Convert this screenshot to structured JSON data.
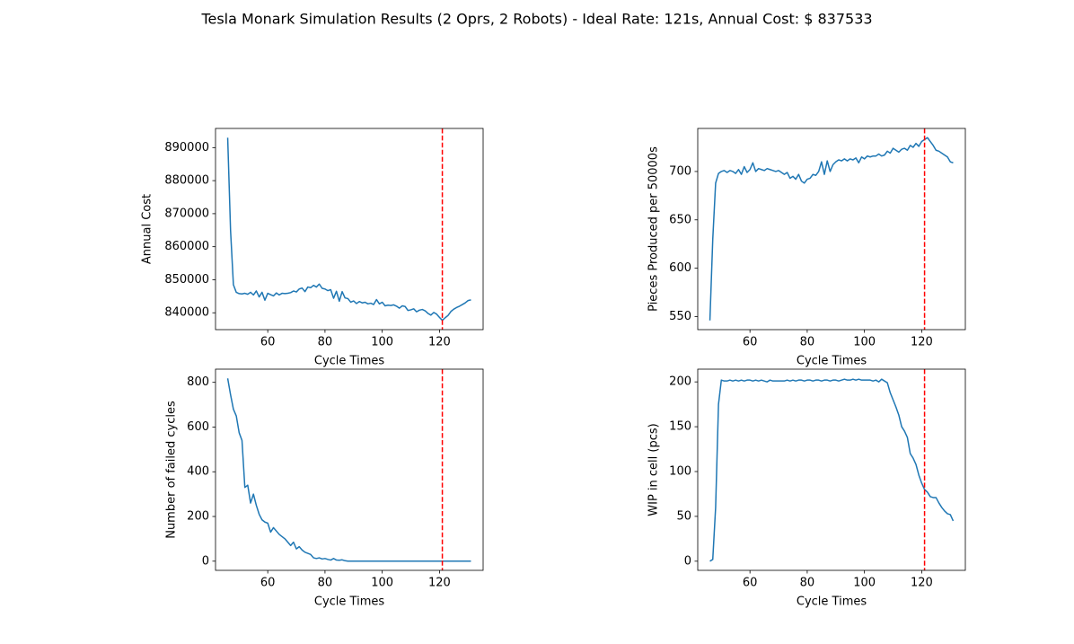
{
  "title": "Tesla Monark Simulation Results (2 Oprs, 2 Robots) - Ideal Rate:  121s, Annual Cost: $ 837533",
  "chart_data": [
    {
      "type": "line",
      "xlabel": "Cycle Times",
      "ylabel": "Annual Cost",
      "color": "#1f77b4",
      "vline": 121,
      "vline_color": "#ff0000",
      "xlim": [
        41.75,
        135.25
      ],
      "xticks": [
        60,
        80,
        100,
        120
      ],
      "ylim": [
        834900,
        895800
      ],
      "yticks": [
        840000,
        850000,
        860000,
        870000,
        880000,
        890000
      ],
      "x": [
        46,
        47,
        48,
        49,
        50,
        51,
        52,
        53,
        54,
        55,
        56,
        57,
        58,
        59,
        60,
        61,
        62,
        63,
        64,
        65,
        66,
        67,
        68,
        69,
        70,
        71,
        72,
        73,
        74,
        75,
        76,
        77,
        78,
        79,
        80,
        81,
        82,
        83,
        84,
        85,
        86,
        87,
        88,
        89,
        90,
        91,
        92,
        93,
        94,
        95,
        96,
        97,
        98,
        99,
        100,
        101,
        102,
        103,
        104,
        105,
        106,
        107,
        108,
        109,
        110,
        111,
        112,
        113,
        114,
        115,
        116,
        117,
        118,
        119,
        120,
        121,
        122,
        123,
        124,
        125,
        126,
        127,
        128,
        129,
        130,
        131
      ],
      "values": [
        893000,
        865000,
        848500,
        846200,
        845800,
        845700,
        845900,
        845600,
        846200,
        845400,
        846600,
        844800,
        846200,
        843800,
        845900,
        845500,
        845100,
        846000,
        845400,
        845900,
        845800,
        845900,
        846100,
        846600,
        846300,
        847200,
        847500,
        846400,
        847800,
        847600,
        848300,
        847800,
        848700,
        847400,
        847200,
        846700,
        847000,
        844400,
        846500,
        843500,
        846400,
        844500,
        844300,
        843200,
        843600,
        842800,
        843400,
        843000,
        843200,
        842700,
        842900,
        842500,
        844000,
        842700,
        843200,
        842100,
        842300,
        842200,
        842400,
        842000,
        841400,
        842100,
        841900,
        840700,
        840900,
        841200,
        840300,
        840800,
        841000,
        840600,
        839800,
        839300,
        840100,
        839600,
        838600,
        837700,
        838500,
        839200,
        840400,
        841100,
        841600,
        842000,
        842500,
        843000,
        843700,
        843900
      ]
    },
    {
      "type": "line",
      "xlabel": "Cycle Times",
      "ylabel": "Pieces Produced per 50000s",
      "color": "#1f77b4",
      "vline": 121,
      "vline_color": "#ff0000",
      "xlim": [
        41.75,
        135.25
      ],
      "xticks": [
        60,
        80,
        100,
        120
      ],
      "ylim": [
        536.5,
        744.5
      ],
      "yticks": [
        550,
        600,
        650,
        700
      ],
      "x": [
        46,
        47,
        48,
        49,
        50,
        51,
        52,
        53,
        54,
        55,
        56,
        57,
        58,
        59,
        60,
        61,
        62,
        63,
        64,
        65,
        66,
        67,
        68,
        69,
        70,
        71,
        72,
        73,
        74,
        75,
        76,
        77,
        78,
        79,
        80,
        81,
        82,
        83,
        84,
        85,
        86,
        87,
        88,
        89,
        90,
        91,
        92,
        93,
        94,
        95,
        96,
        97,
        98,
        99,
        100,
        101,
        102,
        103,
        104,
        105,
        106,
        107,
        108,
        109,
        110,
        111,
        112,
        113,
        114,
        115,
        116,
        117,
        118,
        119,
        120,
        121,
        122,
        123,
        124,
        125,
        126,
        127,
        128,
        129,
        130,
        131
      ],
      "values": [
        546,
        630,
        688,
        698,
        700,
        701,
        699,
        701,
        700,
        698,
        702,
        697,
        705,
        699,
        702,
        709,
        700,
        703,
        702,
        701,
        703,
        702,
        701,
        700,
        701,
        699,
        697,
        699,
        693,
        695,
        692,
        697,
        690,
        688,
        692,
        693,
        697,
        696,
        700,
        710,
        697,
        711,
        700,
        707,
        710,
        712,
        711,
        713,
        711,
        713,
        712,
        714,
        709,
        715,
        713,
        716,
        715,
        716,
        716,
        718,
        716,
        717,
        721,
        719,
        724,
        722,
        720,
        723,
        724,
        722,
        727,
        725,
        729,
        726,
        731,
        733,
        735,
        731,
        727,
        722,
        721,
        719,
        717,
        715,
        710,
        709
      ]
    },
    {
      "type": "line",
      "xlabel": "Cycle Times",
      "ylabel": "Number of failed cycles",
      "color": "#1f77b4",
      "vline": 121,
      "vline_color": "#ff0000",
      "xlim": [
        41.75,
        135.25
      ],
      "xticks": [
        60,
        80,
        100,
        120
      ],
      "ylim": [
        -41,
        859
      ],
      "yticks": [
        0,
        200,
        400,
        600,
        800
      ],
      "x": [
        46,
        47,
        48,
        49,
        50,
        51,
        52,
        53,
        54,
        55,
        56,
        57,
        58,
        59,
        60,
        61,
        62,
        63,
        64,
        65,
        66,
        67,
        68,
        69,
        70,
        71,
        72,
        73,
        74,
        75,
        76,
        77,
        78,
        79,
        80,
        81,
        82,
        83,
        84,
        85,
        86,
        87,
        88,
        89,
        90,
        91,
        92,
        93,
        94,
        95,
        96,
        97,
        98,
        99,
        100,
        101,
        102,
        103,
        104,
        105,
        106,
        107,
        108,
        109,
        110,
        111,
        112,
        113,
        114,
        115,
        116,
        117,
        118,
        119,
        120,
        121,
        122,
        123,
        124,
        125,
        126,
        127,
        128,
        129,
        130,
        131
      ],
      "values": [
        818,
        745,
        680,
        650,
        575,
        540,
        330,
        340,
        260,
        300,
        250,
        210,
        185,
        175,
        170,
        130,
        150,
        135,
        120,
        110,
        100,
        85,
        70,
        85,
        55,
        65,
        50,
        40,
        35,
        30,
        15,
        12,
        15,
        10,
        12,
        8,
        5,
        12,
        5,
        4,
        6,
        2,
        0,
        0,
        0,
        0,
        0,
        0,
        0,
        0,
        0,
        0,
        0,
        0,
        0,
        0,
        0,
        0,
        0,
        0,
        0,
        0,
        0,
        0,
        0,
        0,
        0,
        0,
        0,
        0,
        0,
        0,
        0,
        0,
        0,
        0,
        0,
        0,
        0,
        0,
        0,
        0,
        0,
        0,
        0,
        0
      ]
    },
    {
      "type": "line",
      "xlabel": "Cycle Times",
      "ylabel": "WIP in cell (pcs)",
      "color": "#1f77b4",
      "vline": 121,
      "vline_color": "#ff0000",
      "xlim": [
        41.75,
        135.25
      ],
      "xticks": [
        60,
        80,
        100,
        120
      ],
      "ylim": [
        -10.2,
        214.2
      ],
      "yticks": [
        0,
        50,
        100,
        150,
        200
      ],
      "x": [
        46,
        47,
        48,
        49,
        50,
        51,
        52,
        53,
        54,
        55,
        56,
        57,
        58,
        59,
        60,
        61,
        62,
        63,
        64,
        65,
        66,
        67,
        68,
        69,
        70,
        71,
        72,
        73,
        74,
        75,
        76,
        77,
        78,
        79,
        80,
        81,
        82,
        83,
        84,
        85,
        86,
        87,
        88,
        89,
        90,
        91,
        92,
        93,
        94,
        95,
        96,
        97,
        98,
        99,
        100,
        101,
        102,
        103,
        104,
        105,
        106,
        107,
        108,
        109,
        110,
        111,
        112,
        113,
        114,
        115,
        116,
        117,
        118,
        119,
        120,
        121,
        122,
        123,
        124,
        125,
        126,
        127,
        128,
        129,
        130,
        131
      ],
      "values": [
        0,
        2,
        60,
        175,
        202,
        201,
        201,
        202,
        201,
        202,
        201,
        202,
        201,
        202,
        202,
        201,
        202,
        201,
        202,
        201,
        200,
        202,
        201,
        201,
        201,
        201,
        201,
        202,
        201,
        202,
        201,
        202,
        202,
        201,
        202,
        202,
        201,
        202,
        202,
        201,
        202,
        202,
        201,
        202,
        202,
        201,
        202,
        203,
        202,
        202,
        203,
        202,
        203,
        202,
        202,
        202,
        202,
        201,
        202,
        200,
        203,
        201,
        199,
        188,
        180,
        172,
        163,
        150,
        145,
        138,
        120,
        115,
        108,
        96,
        87,
        80,
        77,
        72,
        71,
        71,
        65,
        60,
        56,
        53,
        52,
        45
      ]
    }
  ]
}
